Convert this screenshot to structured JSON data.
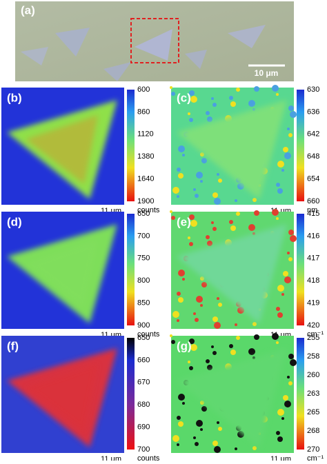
{
  "panel_a": {
    "label": "(a)",
    "scale_bar": "10 μm"
  },
  "panels": [
    {
      "label": "(b)",
      "scale": "11 μm",
      "ticks": [
        "600",
        "860",
        "1120",
        "1380",
        "1640",
        "1900"
      ],
      "unit": "counts"
    },
    {
      "label": "(c)",
      "scale": "11 μm",
      "ticks": [
        "630",
        "636",
        "642",
        "648",
        "654",
        "660"
      ],
      "unit": "nm"
    },
    {
      "label": "(d)",
      "scale": "11 μm",
      "ticks": [
        "650",
        "700",
        "750",
        "800",
        "850",
        "900"
      ],
      "unit": "counts"
    },
    {
      "label": "(e)",
      "scale": "11 μm",
      "ticks": [
        "415",
        "416",
        "417",
        "418",
        "419",
        "420"
      ],
      "unit": "cm⁻¹"
    },
    {
      "label": "(f)",
      "scale": "11 μm",
      "ticks": [
        "650",
        "660",
        "670",
        "680",
        "690",
        "700"
      ],
      "unit": "counts"
    },
    {
      "label": "(g)",
      "scale": "11 μm",
      "ticks": [
        "255",
        "258",
        "260",
        "263",
        "265",
        "268",
        "270"
      ],
      "unit": "cm⁻¹"
    }
  ]
}
